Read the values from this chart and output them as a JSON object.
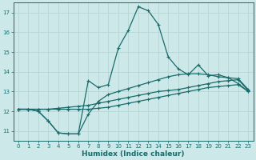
{
  "xlabel": "Humidex (Indice chaleur)",
  "ylabel": "",
  "bg_color": "#cde8e8",
  "grid_color": "#b8d5d5",
  "line_color": "#1a6b6b",
  "xlim": [
    -0.5,
    23.5
  ],
  "ylim": [
    10.5,
    17.5
  ],
  "xticks": [
    0,
    1,
    2,
    3,
    4,
    5,
    6,
    7,
    8,
    9,
    10,
    11,
    12,
    13,
    14,
    15,
    16,
    17,
    18,
    19,
    20,
    21,
    22,
    23
  ],
  "yticks": [
    11,
    12,
    13,
    14,
    15,
    16,
    17
  ],
  "line1_x": [
    0,
    1,
    2,
    3,
    4,
    5,
    6,
    7,
    8,
    9,
    10,
    11,
    12,
    13,
    14,
    15,
    16,
    17,
    18,
    19,
    20,
    21,
    22,
    23
  ],
  "line1_y": [
    12.1,
    12.1,
    12.0,
    11.5,
    10.9,
    10.85,
    10.85,
    11.85,
    12.5,
    12.85,
    13.0,
    13.15,
    13.3,
    13.45,
    13.6,
    13.75,
    13.85,
    13.9,
    13.9,
    13.85,
    13.75,
    13.7,
    13.65,
    13.1
  ],
  "line2_x": [
    0,
    1,
    2,
    3,
    4,
    5,
    6,
    7,
    8,
    9,
    10,
    11,
    12,
    13,
    14,
    15,
    16,
    17,
    18,
    19,
    20,
    21,
    22,
    23
  ],
  "line2_y": [
    12.1,
    12.1,
    12.0,
    11.5,
    10.9,
    10.85,
    10.85,
    13.55,
    13.2,
    13.35,
    15.2,
    16.1,
    17.3,
    17.1,
    16.4,
    14.75,
    14.15,
    13.85,
    14.35,
    13.8,
    13.85,
    13.7,
    13.4,
    13.0
  ],
  "line3_x": [
    0,
    1,
    2,
    3,
    4,
    5,
    6,
    7,
    8,
    9,
    10,
    11,
    12,
    13,
    14,
    15,
    16,
    17,
    18,
    19,
    20,
    21,
    22,
    23
  ],
  "line3_y": [
    12.1,
    12.1,
    12.1,
    12.1,
    12.15,
    12.2,
    12.25,
    12.3,
    12.4,
    12.5,
    12.6,
    12.7,
    12.8,
    12.9,
    13.0,
    13.05,
    13.1,
    13.2,
    13.3,
    13.4,
    13.5,
    13.55,
    13.6,
    13.05
  ],
  "line4_x": [
    0,
    1,
    2,
    3,
    4,
    5,
    6,
    7,
    8,
    9,
    10,
    11,
    12,
    13,
    14,
    15,
    16,
    17,
    18,
    19,
    20,
    21,
    22,
    23
  ],
  "line4_y": [
    12.1,
    12.1,
    12.1,
    12.1,
    12.1,
    12.1,
    12.1,
    12.1,
    12.15,
    12.2,
    12.3,
    12.4,
    12.5,
    12.6,
    12.7,
    12.8,
    12.9,
    13.0,
    13.1,
    13.2,
    13.25,
    13.3,
    13.35,
    13.0
  ]
}
